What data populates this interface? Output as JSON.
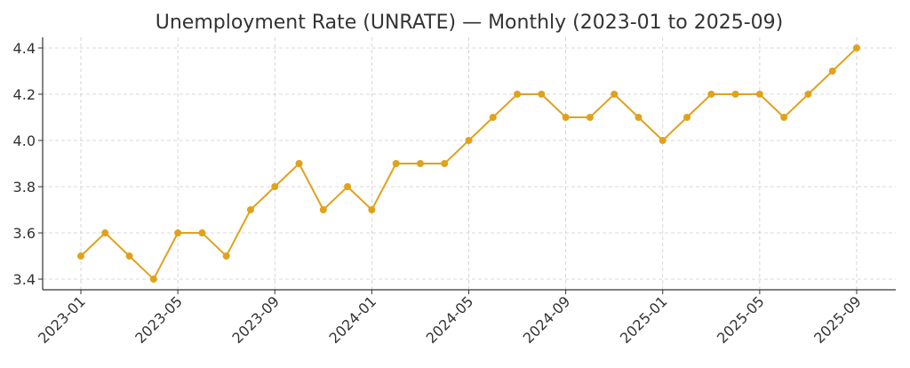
{
  "chart_data": {
    "type": "line",
    "title": "Unemployment Rate (UNRATE) — Monthly (2023-01 to 2025-09)",
    "xlabel": "",
    "ylabel": "",
    "x": [
      "2023-01",
      "2023-02",
      "2023-03",
      "2023-04",
      "2023-05",
      "2023-06",
      "2023-07",
      "2023-08",
      "2023-09",
      "2023-10",
      "2023-11",
      "2023-12",
      "2024-01",
      "2024-02",
      "2024-03",
      "2024-04",
      "2024-05",
      "2024-06",
      "2024-07",
      "2024-08",
      "2024-09",
      "2024-10",
      "2024-11",
      "2024-12",
      "2025-01",
      "2025-02",
      "2025-03",
      "2025-04",
      "2025-05",
      "2025-06",
      "2025-07",
      "2025-08",
      "2025-09"
    ],
    "series": [
      {
        "name": "UNRATE",
        "color": "#E0A21C",
        "values": [
          3.5,
          3.6,
          3.5,
          3.4,
          3.6,
          3.6,
          3.5,
          3.7,
          3.8,
          3.9,
          3.7,
          3.8,
          3.7,
          3.9,
          3.9,
          3.9,
          4.0,
          4.1,
          4.2,
          4.2,
          4.1,
          4.1,
          4.2,
          4.1,
          4.0,
          4.1,
          4.2,
          4.2,
          4.2,
          4.1,
          4.2,
          4.3,
          4.4
        ]
      }
    ],
    "xticks": [
      "2023-01",
      "2023-05",
      "2023-09",
      "2024-01",
      "2024-05",
      "2024-09",
      "2025-01",
      "2025-05",
      "2025-09"
    ],
    "yticks": [
      "3.4",
      "3.6",
      "3.8",
      "4.0",
      "4.2",
      "4.4"
    ],
    "ylim": [
      3.354,
      4.446
    ],
    "grid": true,
    "legend": "none"
  }
}
